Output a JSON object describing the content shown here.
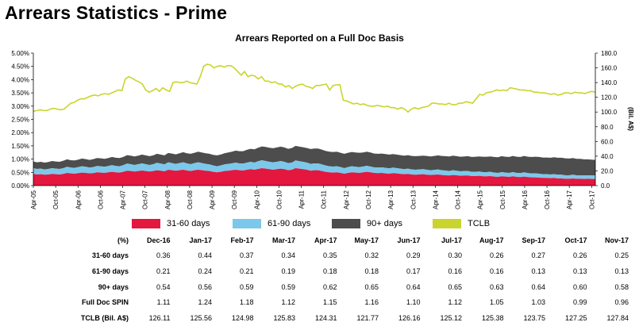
{
  "page_title": "Arrears Statistics - Prime",
  "colors": {
    "d31_60": "#e4173f",
    "d61_90": "#7cc8ea",
    "d90plus": "#4d4d4d",
    "tclb": "#c9d52e"
  },
  "chart_data": {
    "type": "area",
    "title": "Arrears Reported on a Full Doc Basis",
    "ylabel_right": "(Bil. A$)",
    "ylim_left": [
      0,
      5
    ],
    "ylim_right": [
      0,
      180
    ],
    "left_ticks": [
      "0.00%",
      "0.50%",
      "1.00%",
      "1.50%",
      "2.00%",
      "2.50%",
      "3.00%",
      "3.50%",
      "4.00%",
      "4.50%",
      "5.00%"
    ],
    "right_ticks": [
      "0.0",
      "20.0",
      "40.0",
      "60.0",
      "80.0",
      "100.0",
      "120.0",
      "140.0",
      "160.0",
      "180.0"
    ],
    "x_ticks": [
      "Apr-05",
      "Oct-05",
      "Apr-06",
      "Oct-06",
      "Apr-07",
      "Oct-07",
      "Apr-08",
      "Oct-08",
      "Apr-09",
      "Oct-09",
      "Apr-10",
      "Oct-10",
      "Apr-11",
      "Oct-11",
      "Apr-12",
      "Oct-12",
      "Apr-13",
      "Oct-13",
      "Apr-14",
      "Oct-14",
      "Apr-15",
      "Oct-15",
      "Apr-16",
      "Oct-16",
      "Apr-17",
      "Oct-17"
    ],
    "x_start": "Apr-05",
    "x_end": "Nov-17",
    "series": [
      {
        "name": "31-60 days",
        "axis": "left",
        "values": [
          0.44,
          0.42,
          0.43,
          0.41,
          0.42,
          0.44,
          0.43,
          0.42,
          0.44,
          0.48,
          0.46,
          0.45,
          0.47,
          0.49,
          0.48,
          0.46,
          0.47,
          0.5,
          0.49,
          0.48,
          0.5,
          0.52,
          0.5,
          0.49,
          0.52,
          0.56,
          0.55,
          0.53,
          0.55,
          0.57,
          0.55,
          0.53,
          0.55,
          0.58,
          0.56,
          0.54,
          0.6,
          0.58,
          0.56,
          0.58,
          0.6,
          0.57,
          0.55,
          0.58,
          0.6,
          0.58,
          0.56,
          0.55,
          0.52,
          0.5,
          0.52,
          0.55,
          0.56,
          0.58,
          0.6,
          0.58,
          0.57,
          0.6,
          0.62,
          0.6,
          0.63,
          0.66,
          0.64,
          0.62,
          0.6,
          0.62,
          0.64,
          0.62,
          0.58,
          0.6,
          0.66,
          0.64,
          0.62,
          0.6,
          0.56,
          0.58,
          0.58,
          0.55,
          0.52,
          0.5,
          0.49,
          0.5,
          0.48,
          0.45,
          0.48,
          0.5,
          0.49,
          0.48,
          0.5,
          0.52,
          0.5,
          0.48,
          0.47,
          0.48,
          0.46,
          0.45,
          0.47,
          0.46,
          0.44,
          0.43,
          0.44,
          0.42,
          0.41,
          0.42,
          0.43,
          0.41,
          0.4,
          0.41,
          0.42,
          0.4,
          0.39,
          0.38,
          0.4,
          0.39,
          0.37,
          0.38,
          0.38,
          0.36,
          0.36,
          0.37,
          0.35,
          0.35,
          0.36,
          0.34,
          0.33,
          0.35,
          0.34,
          0.33,
          0.35,
          0.33,
          0.32,
          0.34,
          0.32,
          0.31,
          0.31,
          0.3,
          0.29,
          0.29,
          0.28,
          0.29,
          0.27,
          0.27,
          0.26,
          0.26,
          0.27,
          0.26,
          0.26,
          0.25,
          0.26,
          0.25,
          0.25
        ]
      },
      {
        "name": "61-90 days",
        "axis": "left",
        "values": [
          0.22,
          0.21,
          0.21,
          0.2,
          0.21,
          0.22,
          0.21,
          0.21,
          0.22,
          0.23,
          0.22,
          0.22,
          0.23,
          0.24,
          0.23,
          0.22,
          0.23,
          0.24,
          0.24,
          0.23,
          0.24,
          0.25,
          0.24,
          0.24,
          0.25,
          0.27,
          0.26,
          0.25,
          0.26,
          0.27,
          0.26,
          0.25,
          0.26,
          0.28,
          0.27,
          0.26,
          0.28,
          0.27,
          0.26,
          0.27,
          0.28,
          0.27,
          0.26,
          0.27,
          0.28,
          0.27,
          0.26,
          0.25,
          0.24,
          0.23,
          0.24,
          0.25,
          0.26,
          0.26,
          0.27,
          0.26,
          0.26,
          0.27,
          0.28,
          0.27,
          0.29,
          0.3,
          0.29,
          0.28,
          0.28,
          0.28,
          0.29,
          0.28,
          0.27,
          0.27,
          0.29,
          0.28,
          0.28,
          0.27,
          0.26,
          0.26,
          0.26,
          0.25,
          0.24,
          0.23,
          0.23,
          0.23,
          0.22,
          0.21,
          0.22,
          0.23,
          0.22,
          0.22,
          0.22,
          0.23,
          0.22,
          0.21,
          0.21,
          0.21,
          0.21,
          0.2,
          0.21,
          0.2,
          0.2,
          0.19,
          0.2,
          0.19,
          0.19,
          0.19,
          0.19,
          0.19,
          0.18,
          0.18,
          0.19,
          0.18,
          0.18,
          0.17,
          0.18,
          0.17,
          0.17,
          0.17,
          0.17,
          0.16,
          0.16,
          0.16,
          0.16,
          0.16,
          0.16,
          0.15,
          0.15,
          0.16,
          0.15,
          0.15,
          0.16,
          0.15,
          0.15,
          0.16,
          0.15,
          0.15,
          0.15,
          0.15,
          0.14,
          0.14,
          0.14,
          0.14,
          0.14,
          0.14,
          0.13,
          0.13,
          0.14,
          0.13,
          0.13,
          0.13,
          0.13,
          0.13,
          0.13
        ]
      },
      {
        "name": "90+ days",
        "axis": "left",
        "values": [
          0.25,
          0.25,
          0.26,
          0.26,
          0.26,
          0.27,
          0.27,
          0.27,
          0.28,
          0.28,
          0.28,
          0.28,
          0.28,
          0.29,
          0.29,
          0.29,
          0.3,
          0.3,
          0.3,
          0.3,
          0.3,
          0.31,
          0.31,
          0.31,
          0.31,
          0.32,
          0.32,
          0.32,
          0.32,
          0.33,
          0.33,
          0.33,
          0.33,
          0.34,
          0.34,
          0.34,
          0.35,
          0.36,
          0.36,
          0.37,
          0.38,
          0.38,
          0.39,
          0.39,
          0.4,
          0.4,
          0.4,
          0.4,
          0.4,
          0.41,
          0.41,
          0.42,
          0.43,
          0.44,
          0.45,
          0.46,
          0.47,
          0.48,
          0.49,
          0.5,
          0.51,
          0.52,
          0.53,
          0.53,
          0.53,
          0.54,
          0.54,
          0.54,
          0.54,
          0.55,
          0.55,
          0.55,
          0.55,
          0.55,
          0.56,
          0.56,
          0.56,
          0.56,
          0.55,
          0.55,
          0.55,
          0.55,
          0.54,
          0.54,
          0.54,
          0.54,
          0.54,
          0.54,
          0.53,
          0.53,
          0.53,
          0.52,
          0.52,
          0.52,
          0.52,
          0.52,
          0.51,
          0.51,
          0.51,
          0.51,
          0.51,
          0.51,
          0.51,
          0.51,
          0.51,
          0.52,
          0.52,
          0.53,
          0.53,
          0.54,
          0.54,
          0.55,
          0.55,
          0.55,
          0.55,
          0.55,
          0.56,
          0.56,
          0.57,
          0.57,
          0.58,
          0.58,
          0.58,
          0.59,
          0.59,
          0.6,
          0.6,
          0.6,
          0.61,
          0.61,
          0.61,
          0.62,
          0.62,
          0.62,
          0.63,
          0.63,
          0.63,
          0.63,
          0.63,
          0.64,
          0.64,
          0.64,
          0.64,
          0.63,
          0.63,
          0.62,
          0.62,
          0.61,
          0.6,
          0.6,
          0.59,
          0.58
        ]
      },
      {
        "name": "TCLB",
        "axis": "right",
        "values": [
          101,
          102,
          103,
          102,
          102,
          104,
          105,
          104,
          103,
          104,
          108,
          112,
          113,
          116,
          118,
          118,
          120,
          122,
          123,
          122,
          124,
          125,
          124,
          126,
          128,
          130,
          129,
          145,
          148,
          146,
          143,
          141,
          138,
          130,
          127,
          129,
          132,
          128,
          133,
          130,
          128,
          140,
          141,
          140,
          140,
          142,
          140,
          139,
          138,
          148,
          162,
          165,
          164,
          160,
          162,
          163,
          161,
          163,
          163,
          160,
          155,
          150,
          155,
          148,
          150,
          149,
          145,
          148,
          142,
          142,
          140,
          141,
          138,
          138,
          134,
          136,
          132,
          135,
          137,
          138,
          135,
          134,
          132,
          136,
          136,
          137,
          138,
          130,
          136,
          137,
          137,
          116,
          115,
          113,
          111,
          112,
          110,
          111,
          109,
          108,
          108,
          109,
          108,
          107,
          108,
          106,
          106,
          104,
          106,
          104,
          100,
          104,
          106,
          104,
          106,
          107,
          108,
          112,
          112,
          111,
          111,
          110,
          112,
          110,
          110,
          112,
          112,
          114,
          113,
          112,
          118,
          124,
          123,
          126,
          127,
          128,
          130,
          129,
          130,
          129,
          133,
          132,
          131,
          130,
          130,
          129,
          129,
          127,
          127,
          126,
          126,
          125,
          124,
          125,
          123,
          124,
          126,
          126,
          125,
          127,
          126,
          126,
          125,
          127,
          128,
          127
        ]
      }
    ]
  },
  "legend": [
    {
      "label": "31-60 days"
    },
    {
      "label": "61-90 days"
    },
    {
      "label": "90+ days"
    },
    {
      "label": "TCLB"
    }
  ],
  "table": {
    "corner": "(%)",
    "columns": [
      "Dec-16",
      "Jan-17",
      "Feb-17",
      "Mar-17",
      "Apr-17",
      "May-17",
      "Jun-17",
      "Jul-17",
      "Aug-17",
      "Sep-17",
      "Oct-17",
      "Nov-17"
    ],
    "rows": [
      {
        "label": "31-60 days",
        "values": [
          "0.36",
          "0.44",
          "0.37",
          "0.34",
          "0.35",
          "0.32",
          "0.29",
          "0.30",
          "0.26",
          "0.27",
          "0.26",
          "0.25"
        ]
      },
      {
        "label": "61-90 days",
        "values": [
          "0.21",
          "0.24",
          "0.21",
          "0.19",
          "0.18",
          "0.18",
          "0.17",
          "0.16",
          "0.16",
          "0.13",
          "0.13",
          "0.13"
        ]
      },
      {
        "label": "90+ days",
        "values": [
          "0.54",
          "0.56",
          "0.59",
          "0.59",
          "0.62",
          "0.65",
          "0.64",
          "0.65",
          "0.63",
          "0.64",
          "0.60",
          "0.58"
        ]
      },
      {
        "label": "Full Doc SPIN",
        "values": [
          "1.11",
          "1.24",
          "1.18",
          "1.12",
          "1.15",
          "1.16",
          "1.10",
          "1.12",
          "1.05",
          "1.03",
          "0.99",
          "0.96"
        ]
      },
      {
        "label": "TCLB (Bil. A$)",
        "values": [
          "126.11",
          "125.56",
          "124.98",
          "125.83",
          "124.31",
          "121.77",
          "126.16",
          "125.12",
          "125.38",
          "123.75",
          "127.25",
          "127.84"
        ]
      }
    ]
  }
}
